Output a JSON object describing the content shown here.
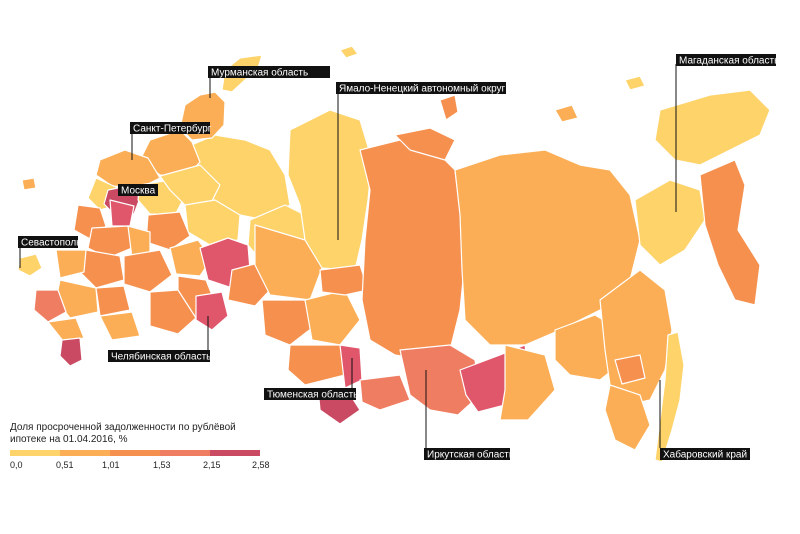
{
  "colors": {
    "c0": "#fdd36a",
    "c1": "#fbae55",
    "c2": "#f6904f",
    "c3": "#ef7d62",
    "c4": "#e0566a",
    "c5": "#c94a62",
    "label_bg": "#111111"
  },
  "legend": {
    "title_line1": "Доля просроченной задолженности по рублёвой",
    "title_line2": "ипотеке на 01.04.2016, %",
    "ticks": [
      "0,0",
      "0,51",
      "1,01",
      "1,53",
      "2,15",
      "2,58"
    ]
  },
  "labels": {
    "murmansk": "Мурманская область",
    "yamal": "Ямало-Ненецкий автономный округ",
    "magadan": "Магаданская область",
    "spb": "Санкт-Петербург",
    "moscow": "Москва",
    "sevastopol": "Севастополь",
    "chelyabinsk": "Челябинская область",
    "tyumen": "Тюменская область",
    "irkutsk": "Иркутская область",
    "khabarovsk": "Хабаровский край"
  }
}
